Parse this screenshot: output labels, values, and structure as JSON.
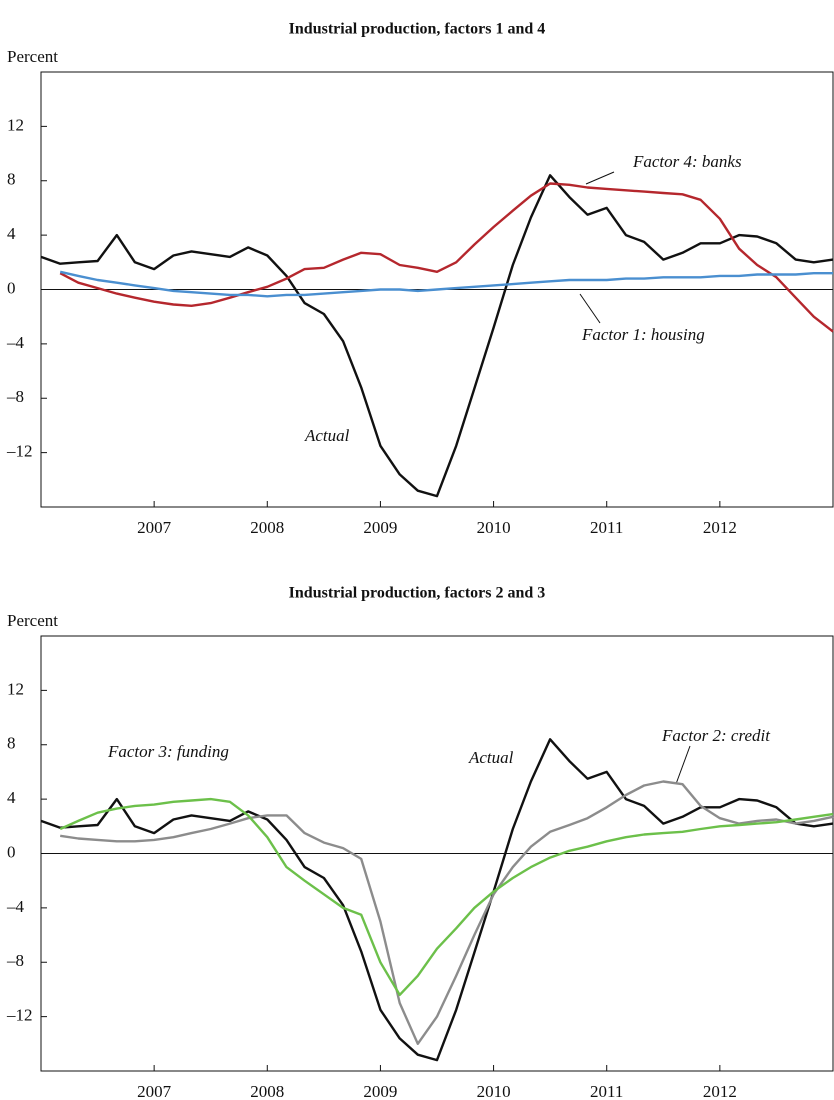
{
  "chart_data": [
    {
      "type": "line",
      "title": "Industrial production, factors 1 and 4",
      "y_label": "Percent",
      "x": [
        2006,
        2006.17,
        2006.33,
        2006.5,
        2006.67,
        2006.83,
        2007,
        2007.17,
        2007.33,
        2007.5,
        2007.67,
        2007.83,
        2008,
        2008.17,
        2008.33,
        2008.5,
        2008.67,
        2008.83,
        2009,
        2009.17,
        2009.33,
        2009.5,
        2009.67,
        2009.83,
        2010,
        2010.17,
        2010.33,
        2010.5,
        2010.67,
        2010.83,
        2011,
        2011.17,
        2011.33,
        2011.5,
        2011.67,
        2011.83,
        2012,
        2012.17,
        2012.33,
        2012.5,
        2012.67,
        2012.83,
        2013
      ],
      "series": [
        {
          "name": "Actual",
          "color": "#111111",
          "values": [
            2.4,
            1.9,
            2.0,
            2.1,
            4.0,
            2.0,
            1.5,
            2.5,
            2.8,
            2.6,
            2.4,
            3.1,
            2.5,
            1.0,
            -1.0,
            -1.8,
            -3.8,
            -7.2,
            -11.5,
            -13.6,
            -14.8,
            -15.2,
            -11.5,
            -7.3,
            -2.8,
            1.8,
            5.3,
            8.4,
            6.8,
            5.5,
            6.0,
            4.0,
            3.5,
            2.2,
            2.7,
            3.4,
            3.4,
            4.0,
            3.9,
            3.4,
            2.2,
            2.0,
            2.2
          ]
        },
        {
          "name": "Factor 4: banks",
          "color": "#b5272d",
          "values": [
            null,
            1.2,
            0.5,
            0.1,
            -0.3,
            -0.6,
            -0.9,
            -1.1,
            -1.2,
            -1.0,
            -0.6,
            -0.2,
            0.2,
            0.8,
            1.5,
            1.6,
            2.2,
            2.7,
            2.6,
            1.8,
            1.6,
            1.3,
            2.0,
            3.3,
            4.6,
            5.8,
            6.9,
            7.8,
            7.7,
            7.5,
            7.4,
            7.3,
            7.2,
            7.1,
            7.0,
            6.6,
            5.2,
            3.0,
            1.8,
            0.9,
            -0.6,
            -2.0,
            -3.1
          ]
        },
        {
          "name": "Factor 1: housing",
          "color": "#4a8fd0",
          "values": [
            null,
            1.3,
            1.0,
            0.7,
            0.5,
            0.3,
            0.1,
            -0.1,
            -0.2,
            -0.3,
            -0.4,
            -0.4,
            -0.5,
            -0.4,
            -0.4,
            -0.3,
            -0.2,
            -0.1,
            0,
            0,
            -0.1,
            0,
            0.1,
            0.2,
            0.3,
            0.4,
            0.5,
            0.6,
            0.7,
            0.7,
            0.7,
            0.8,
            0.8,
            0.9,
            0.9,
            0.9,
            1.0,
            1.0,
            1.1,
            1.1,
            1.1,
            1.2,
            1.2
          ]
        }
      ],
      "xlim": [
        2006,
        2013
      ],
      "xticks": [
        2007,
        2008,
        2009,
        2010,
        2011,
        2012
      ],
      "ylim": [
        -16,
        16
      ],
      "yticks": [
        {
          "value": -12,
          "label": "–12"
        },
        {
          "value": -8,
          "label": "–8"
        },
        {
          "value": -4,
          "label": "–4"
        },
        0,
        4,
        8,
        12
      ],
      "zero_line": true
    },
    {
      "type": "line",
      "title": "Industrial production, factors 2 and 3",
      "y_label": "Percent",
      "x": [
        2006,
        2006.17,
        2006.33,
        2006.5,
        2006.67,
        2006.83,
        2007,
        2007.17,
        2007.33,
        2007.5,
        2007.67,
        2007.83,
        2008,
        2008.17,
        2008.33,
        2008.5,
        2008.67,
        2008.83,
        2009,
        2009.17,
        2009.33,
        2009.5,
        2009.67,
        2009.83,
        2010,
        2010.17,
        2010.33,
        2010.5,
        2010.67,
        2010.83,
        2011,
        2011.17,
        2011.33,
        2011.5,
        2011.67,
        2011.83,
        2012,
        2012.17,
        2012.33,
        2012.5,
        2012.67,
        2012.83,
        2013
      ],
      "series": [
        {
          "name": "Actual",
          "color": "#111111",
          "values": [
            2.4,
            1.9,
            2.0,
            2.1,
            4.0,
            2.0,
            1.5,
            2.5,
            2.8,
            2.6,
            2.4,
            3.1,
            2.5,
            1.0,
            -1.0,
            -1.8,
            -3.8,
            -7.2,
            -11.5,
            -13.6,
            -14.8,
            -15.2,
            -11.5,
            -7.3,
            -2.8,
            1.8,
            5.3,
            8.4,
            6.8,
            5.5,
            6.0,
            4.0,
            3.5,
            2.2,
            2.7,
            3.4,
            3.4,
            4.0,
            3.9,
            3.4,
            2.2,
            2.0,
            2.2
          ]
        },
        {
          "name": "Factor 2: credit",
          "color": "#8c8c8c",
          "values": [
            null,
            1.3,
            1.1,
            1.0,
            0.9,
            0.9,
            1.0,
            1.2,
            1.5,
            1.8,
            2.2,
            2.6,
            2.8,
            2.8,
            1.5,
            0.8,
            0.4,
            -0.4,
            -5.0,
            -11.0,
            -14.0,
            -12.0,
            -9.0,
            -6.0,
            -3.0,
            -1.0,
            0.5,
            1.6,
            2.1,
            2.6,
            3.4,
            4.3,
            5.0,
            5.3,
            5.1,
            3.5,
            2.6,
            2.2,
            2.4,
            2.5,
            2.2,
            2.4,
            2.7
          ]
        },
        {
          "name": "Factor 3: funding",
          "color": "#6cc04a",
          "values": [
            null,
            1.8,
            2.4,
            3.0,
            3.3,
            3.5,
            3.6,
            3.8,
            3.9,
            4.0,
            3.8,
            2.8,
            1.2,
            -1.0,
            -2.0,
            -3.0,
            -4.0,
            -4.5,
            -8.0,
            -10.4,
            -9.0,
            -7.0,
            -5.5,
            -4.0,
            -2.8,
            -1.8,
            -1.0,
            -0.3,
            0.2,
            0.5,
            0.9,
            1.2,
            1.4,
            1.5,
            1.6,
            1.8,
            2.0,
            2.1,
            2.2,
            2.3,
            2.5,
            2.7,
            2.9
          ]
        }
      ],
      "xlim": [
        2006,
        2013
      ],
      "xticks": [
        2007,
        2008,
        2009,
        2010,
        2011,
        2012
      ],
      "ylim": [
        -16,
        16
      ],
      "yticks": [
        {
          "value": -12,
          "label": "–12"
        },
        {
          "value": -8,
          "label": "–8"
        },
        {
          "value": -4,
          "label": "–4"
        },
        0,
        4,
        8,
        12
      ],
      "zero_line": true
    }
  ]
}
